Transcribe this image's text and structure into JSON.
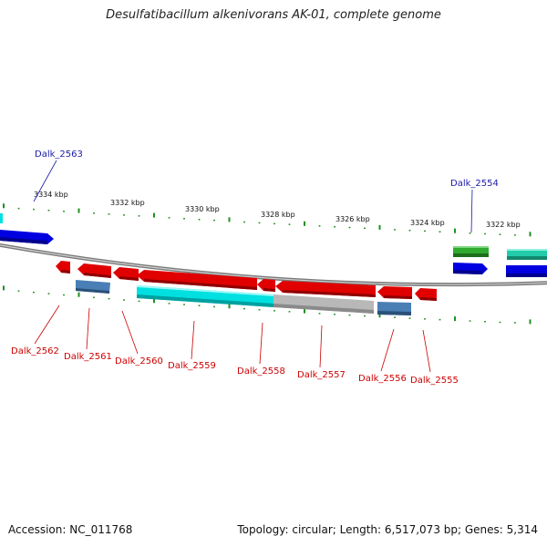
{
  "title": "Desulfatibacillum alkenivorans AK-01, complete genome",
  "footer": {
    "accession": "Accession: NC_011768",
    "summary": "Topology: circular; Length: 6,517,073 bp; Genes: 5,314"
  },
  "scale_labels": [
    "3334 kbp",
    "3332 kbp",
    "3330 kbp",
    "3328 kbp",
    "3326 kbp",
    "3324 kbp",
    "3322 kbp"
  ],
  "gene_labels": {
    "top": [
      "Dalk_2563",
      "Dalk_2554"
    ],
    "bottom": [
      "Dalk_2562",
      "Dalk_2561",
      "Dalk_2560",
      "Dalk_2559",
      "Dalk_2558",
      "Dalk_2557",
      "Dalk_2556",
      "Dalk_2555"
    ]
  },
  "colors": {
    "backbone": "#8a8a8a",
    "tick": "#1f8f1f",
    "red_gene": "#e00000",
    "blue_gene": "#0000e0",
    "cyan_gene": "#00e0e0",
    "steel_gene": "#4a7fb5",
    "gray_gene": "#b8b8b8",
    "green_gene": "#2faa2f",
    "teal_gene": "#22ccaa",
    "label_blue": "#1a1aa6",
    "label_red": "#cc0000"
  }
}
